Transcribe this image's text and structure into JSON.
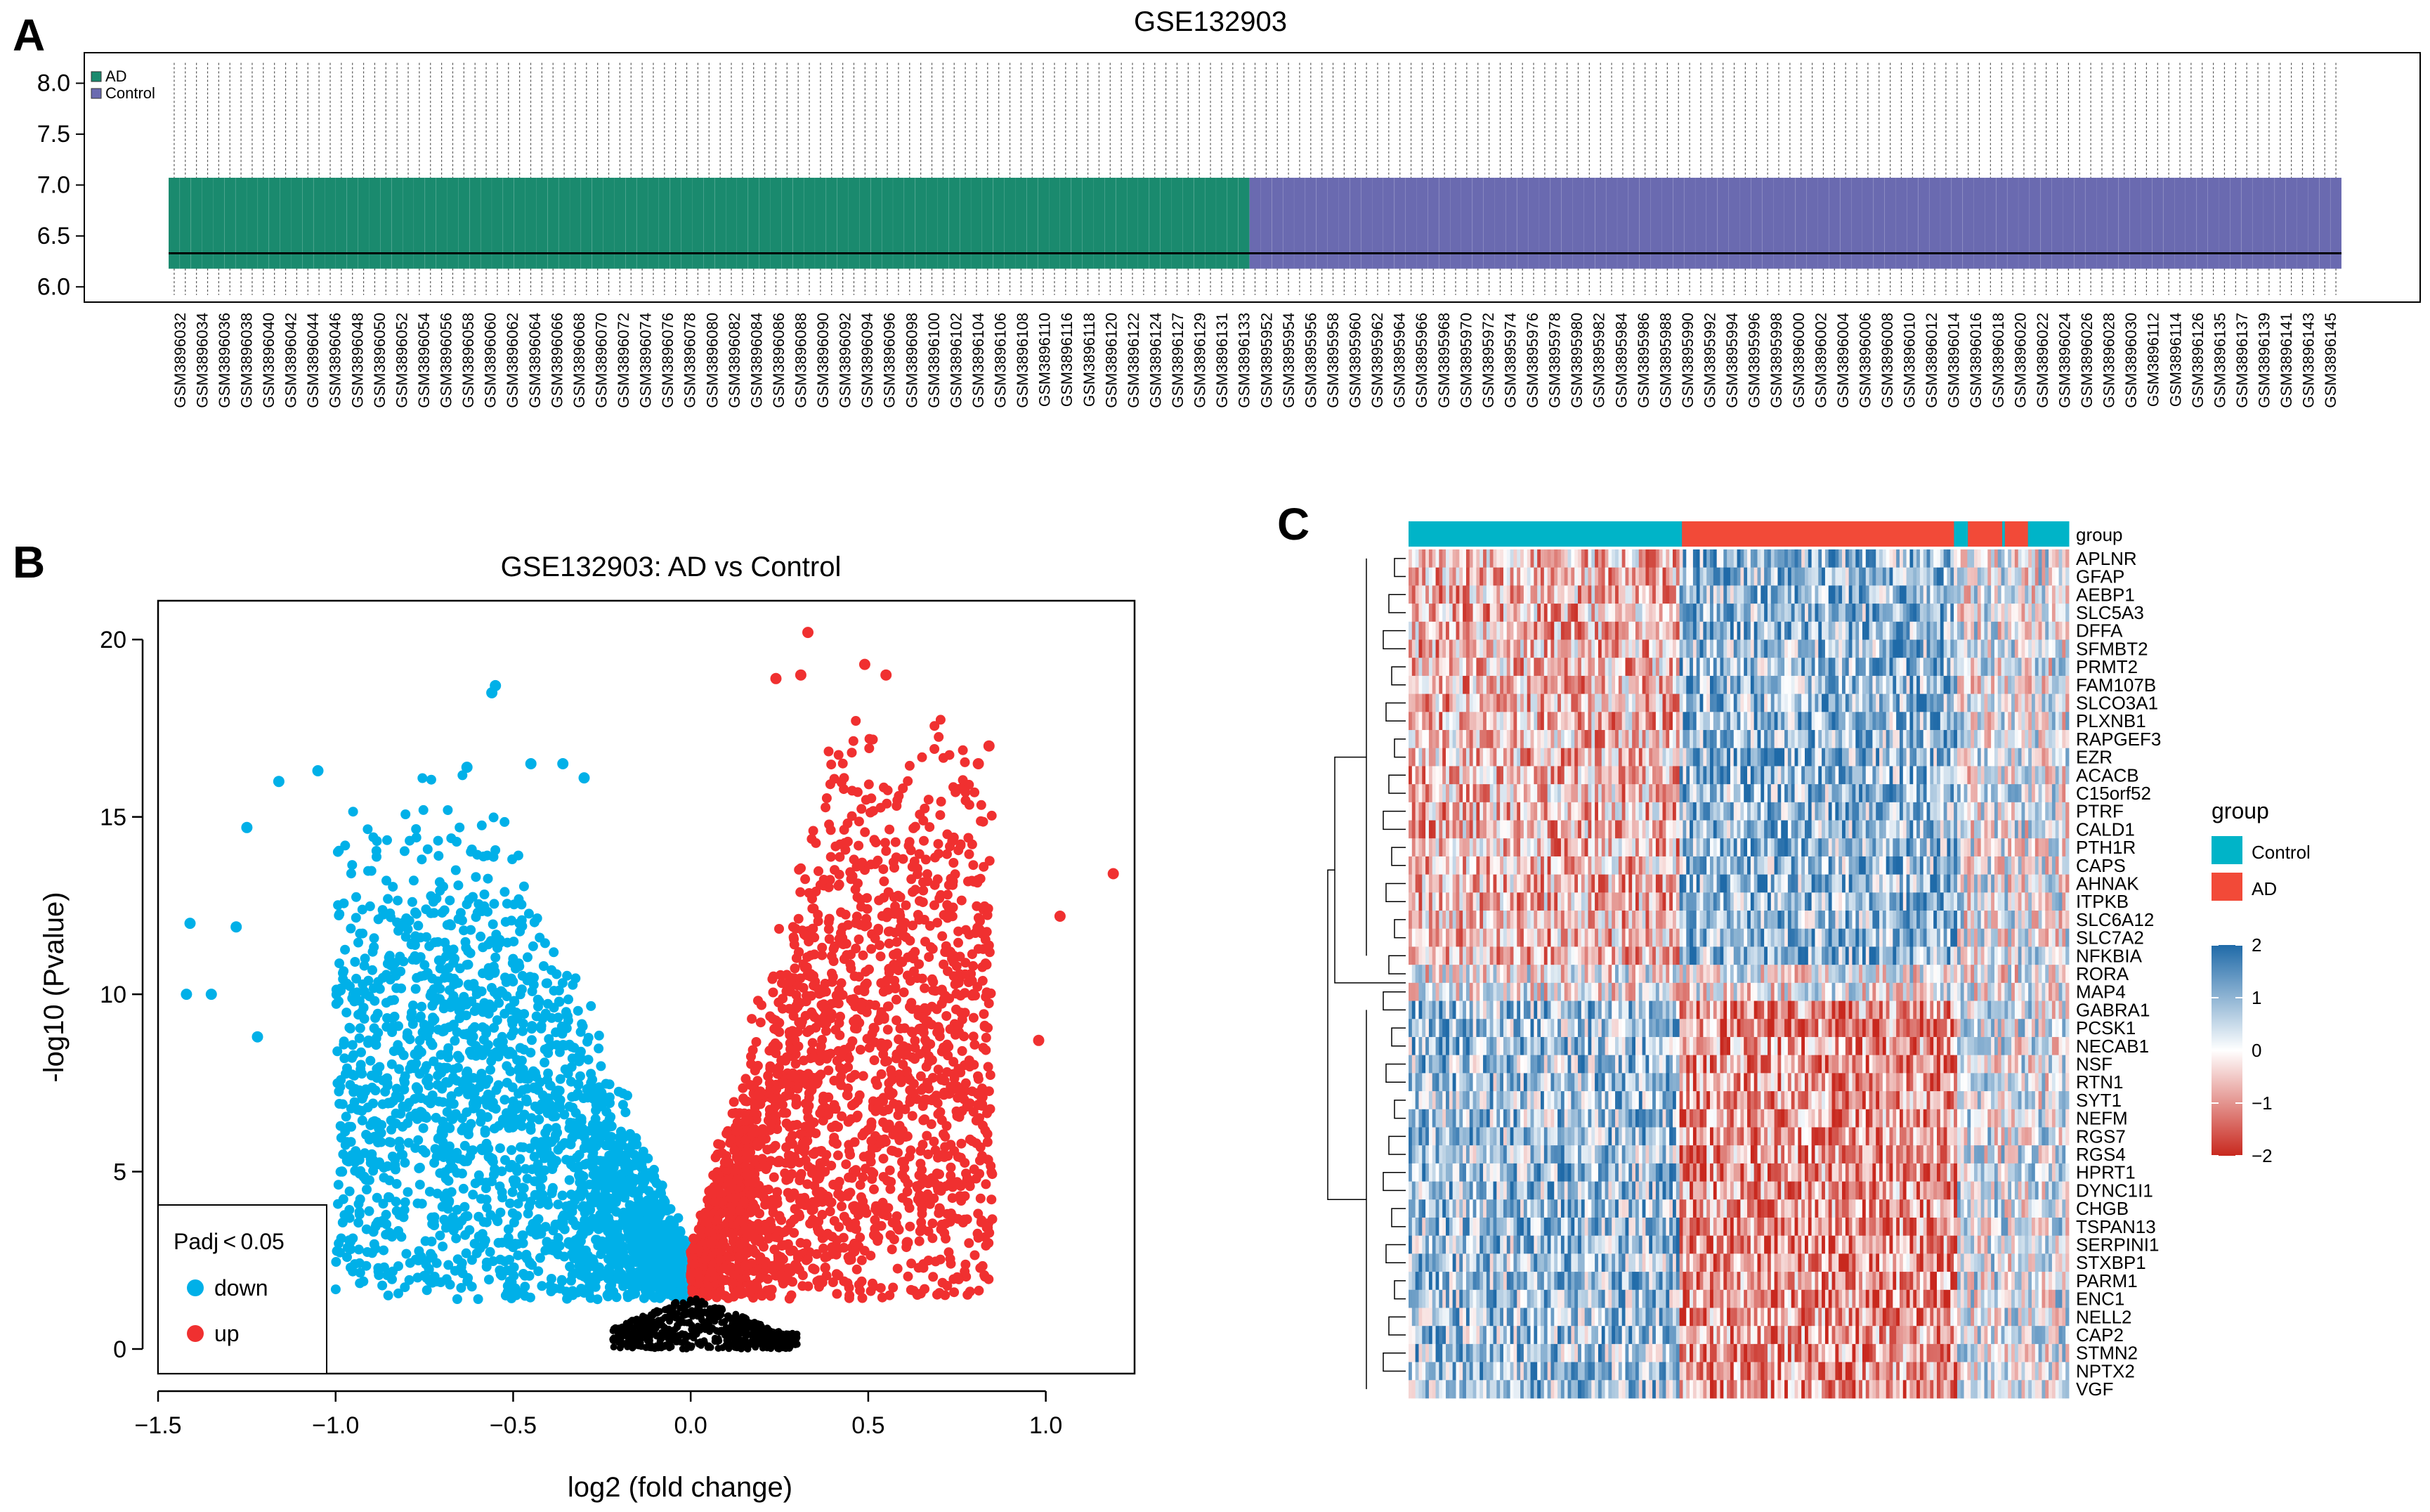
{
  "panels": {
    "A": "A",
    "B": "B",
    "C": "C"
  },
  "colors": {
    "ad_box": "#1a8a6e",
    "control_box": "#6a6ab0",
    "down": "#00b0e8",
    "up": "#f03030",
    "ns": "#000000",
    "heat_group_control": "#00b4c8",
    "heat_group_ad": "#f24a38",
    "heat_high": "#1f6aa8",
    "heat_mid": "#ffffff",
    "heat_low": "#c8281e"
  },
  "chart_data": [
    {
      "panel": "A",
      "type": "box",
      "title": "GSE132903",
      "ylim": [
        5.85,
        8.3
      ],
      "yticks": [
        6.0,
        6.5,
        7.0,
        7.5,
        8.0
      ],
      "ytick_labels": [
        "6.0",
        "6.5",
        "7.0",
        "7.5",
        "8.0"
      ],
      "legend": [
        {
          "name": "AD",
          "color": "#1a8a6e"
        },
        {
          "name": "Control",
          "color": "#6a6ab0"
        }
      ],
      "box_stats": {
        "whisker_low": 5.92,
        "q1": 6.18,
        "median": 6.33,
        "q3": 7.07,
        "whisker_high": 8.2
      },
      "n_ad_boxes": 97,
      "n_control_boxes": 98,
      "sample_labels": [
        "GSM3896032",
        "GSM3896034",
        "GSM3896036",
        "GSM3896038",
        "GSM3896040",
        "GSM3896042",
        "GSM3896044",
        "GSM3896046",
        "GSM3896048",
        "GSM3896050",
        "GSM3896052",
        "GSM3896054",
        "GSM3896056",
        "GSM3896058",
        "GSM3896060",
        "GSM3896062",
        "GSM3896064",
        "GSM3896066",
        "GSM3896068",
        "GSM3896070",
        "GSM3896072",
        "GSM3896074",
        "GSM3896076",
        "GSM3896078",
        "GSM3896080",
        "GSM3896082",
        "GSM3896084",
        "GSM3896086",
        "GSM3896088",
        "GSM3896090",
        "GSM3896092",
        "GSM3896094",
        "GSM3896096",
        "GSM3896098",
        "GSM3896100",
        "GSM3896102",
        "GSM3896104",
        "GSM3896106",
        "GSM3896108",
        "GSM3896110",
        "GSM3896116",
        "GSM3896118",
        "GSM3896120",
        "GSM3896122",
        "GSM3896124",
        "GSM3896127",
        "GSM3896129",
        "GSM3896131",
        "GSM3896133",
        "GSM3895952",
        "GSM3895954",
        "GSM3895956",
        "GSM3895958",
        "GSM3895960",
        "GSM3895962",
        "GSM3895964",
        "GSM3895966",
        "GSM3895968",
        "GSM3895970",
        "GSM3895972",
        "GSM3895974",
        "GSM3895976",
        "GSM3895978",
        "GSM3895980",
        "GSM3895982",
        "GSM3895984",
        "GSM3895986",
        "GSM3895988",
        "GSM3895990",
        "GSM3895992",
        "GSM3895994",
        "GSM3895996",
        "GSM3895998",
        "GSM3896000",
        "GSM3896002",
        "GSM3896004",
        "GSM3896006",
        "GSM3896008",
        "GSM3896010",
        "GSM3896012",
        "GSM3896014",
        "GSM3896016",
        "GSM3896018",
        "GSM3896020",
        "GSM3896022",
        "GSM3896024",
        "GSM3896026",
        "GSM3896028",
        "GSM3896030",
        "GSM3896112",
        "GSM3896114",
        "GSM3896126",
        "GSM3896135",
        "GSM3896137",
        "GSM3896139",
        "GSM3896141",
        "GSM3896143",
        "GSM3896145"
      ]
    },
    {
      "panel": "B",
      "type": "scatter",
      "title": "GSE132903: AD vs Control",
      "xlabel": "log2 (fold change)",
      "ylabel": "-log10 (Pvalue)",
      "xlim": [
        -1.5,
        1.25
      ],
      "ylim": [
        0,
        20.5
      ],
      "xticks": [
        -1.5,
        -1.0,
        -0.5,
        0.0,
        0.5,
        1.0
      ],
      "xtick_labels": [
        "−1.5",
        "−1.0",
        "−0.5",
        "0.0",
        "0.5",
        "1.0"
      ],
      "yticks": [
        0,
        5,
        10,
        15,
        20
      ],
      "ytick_labels": [
        "0",
        "5",
        "10",
        "15",
        "20"
      ],
      "legend_title": "Padj < 0.05",
      "series": [
        {
          "name": "down",
          "color": "#00b0e8",
          "outliers": [
            [
              -1.41,
              12.0
            ],
            [
              -1.28,
              11.9
            ],
            [
              -1.42,
              10.0
            ],
            [
              -1.35,
              10.0
            ],
            [
              -1.22,
              8.8
            ],
            [
              -0.55,
              18.7
            ],
            [
              -0.56,
              18.5
            ],
            [
              -1.05,
              16.3
            ],
            [
              -1.16,
              16.0
            ],
            [
              -1.25,
              14.7
            ],
            [
              -0.63,
              16.4
            ],
            [
              -0.45,
              16.5
            ],
            [
              -0.36,
              16.5
            ],
            [
              -0.3,
              16.1
            ]
          ]
        },
        {
          "name": "up",
          "color": "#f03030",
          "outliers": [
            [
              0.33,
              20.2
            ],
            [
              0.49,
              19.3
            ],
            [
              0.55,
              19.0
            ],
            [
              0.31,
              19.0
            ],
            [
              0.24,
              18.9
            ],
            [
              1.19,
              13.4
            ],
            [
              1.04,
              12.2
            ],
            [
              0.98,
              8.7
            ],
            [
              0.81,
              7.2
            ],
            [
              0.68,
              4.8
            ],
            [
              0.61,
              3.0
            ],
            [
              0.52,
              3.2
            ],
            [
              0.81,
              16.5
            ],
            [
              0.84,
              17.0
            ]
          ]
        }
      ],
      "nonsignificant": {
        "name": "ns",
        "color": "#000000",
        "x_range": [
          -0.22,
          0.3
        ],
        "y_range": [
          0,
          1.5
        ]
      }
    },
    {
      "panel": "C",
      "type": "heatmap",
      "annotation_label": "group",
      "genes": [
        "APLNR",
        "GFAP",
        "AEBP1",
        "SLC5A3",
        "DFFA",
        "SFMBT2",
        "PRMT2",
        "FAM107B",
        "SLCO3A1",
        "PLXNB1",
        "RAPGEF3",
        "EZR",
        "ACACB",
        "C15orf52",
        "PTRF",
        "CALD1",
        "PTH1R",
        "CAPS",
        "AHNAK",
        "ITPKB",
        "SLC6A12",
        "SLC7A2",
        "NFKBIA",
        "RORA",
        "MAP4",
        "GABRA1",
        "PCSK1",
        "NECAB1",
        "NSF",
        "RTN1",
        "SYT1",
        "NEFM",
        "RGS7",
        "RGS4",
        "HPRT1",
        "DYNC1I1",
        "CHGB",
        "TSPAN13",
        "SERPINI1",
        "STXBP1",
        "PARM1",
        "ENC1",
        "NELL2",
        "CAP2",
        "STMN2",
        "NPTX2",
        "VGF"
      ],
      "gene_cluster_sizes": {
        "top": 23,
        "middle": 2,
        "bottom": 22
      },
      "n_samples": 195,
      "group_blocks": [
        {
          "group": "Control",
          "fraction": 0.414
        },
        {
          "group": "AD",
          "fraction": 0.412
        },
        {
          "group": "Control",
          "fraction": 0.021
        },
        {
          "group": "AD",
          "fraction": 0.052
        },
        {
          "group": "Control",
          "fraction": 0.004
        },
        {
          "group": "AD",
          "fraction": 0.035
        },
        {
          "group": "Control",
          "fraction": 0.062
        }
      ],
      "scale_range": [
        -2,
        2
      ],
      "colorbar_ticks": [
        2,
        1,
        0,
        -1,
        -2
      ],
      "colorbar_labels": [
        "2",
        "1",
        "0",
        "−1",
        "−2"
      ],
      "legend_title": "group",
      "legend": [
        {
          "name": "Control",
          "color": "#00b4c8"
        },
        {
          "name": "AD",
          "color": "#f24a38"
        }
      ]
    }
  ]
}
